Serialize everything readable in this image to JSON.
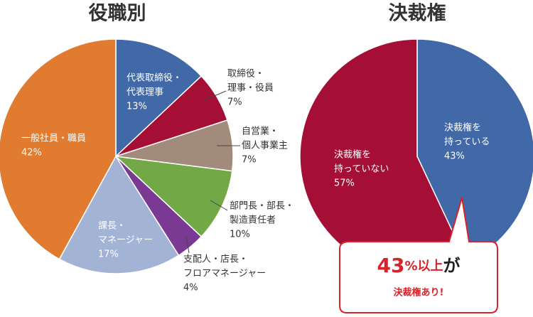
{
  "chart_data": [
    {
      "type": "pie",
      "title": "役職別",
      "categories": [
        [
          "代表取締役・",
          "代表理事"
        ],
        [
          "取締役・",
          "理事・役員"
        ],
        [
          "自営業・",
          "個人事業主"
        ],
        [
          "部門長・部長・",
          "製造責任者"
        ],
        [
          "支配人・店長・",
          "フロアマネージャー"
        ],
        [
          "課長・",
          "マネージャー"
        ],
        [
          "一般社員・職員"
        ]
      ],
      "values": [
        13,
        7,
        7,
        10,
        4,
        17,
        42
      ],
      "value_labels": [
        "13%",
        "7%",
        "7%",
        "10%",
        "4%",
        "17%",
        "42%"
      ],
      "colors": [
        "#4169a8",
        "#a50f35",
        "#a38b7b",
        "#72a845",
        "#7a3a94",
        "#a3b3d6",
        "#e07b2f"
      ]
    },
    {
      "type": "pie",
      "title": "決裁権",
      "categories": [
        [
          "決裁権を",
          "持っている"
        ],
        [
          "決裁権を",
          "持っていない"
        ]
      ],
      "values": [
        43,
        57
      ],
      "value_labels": [
        "43%",
        "57%"
      ],
      "colors": [
        "#4169a8",
        "#a50f35"
      ],
      "annotation": [
        "43",
        "%以上",
        "が",
        "決裁権あり!"
      ]
    }
  ]
}
